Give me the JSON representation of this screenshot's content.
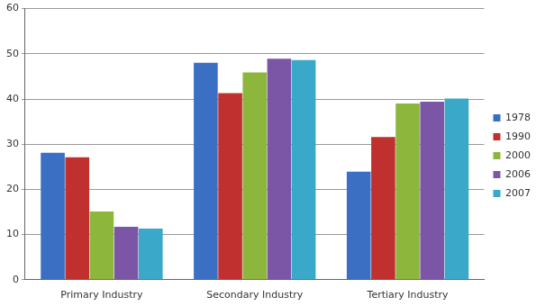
{
  "chart_data": {
    "type": "bar",
    "categories": [
      "Primary Industry",
      "Secondary Industry",
      "Tertiary Industry"
    ],
    "series": [
      {
        "name": "1978",
        "color": "#3a6fc4",
        "values": [
          28.1,
          48.0,
          23.9
        ]
      },
      {
        "name": "1990",
        "color": "#c0302e",
        "values": [
          27.1,
          41.3,
          31.6
        ]
      },
      {
        "name": "2000",
        "color": "#8db63c",
        "values": [
          15.1,
          45.9,
          39.0
        ]
      },
      {
        "name": "2006",
        "color": "#7b55a6",
        "values": [
          11.7,
          48.9,
          39.4
        ]
      },
      {
        "name": "2007",
        "color": "#3aa8c8",
        "values": [
          11.3,
          48.6,
          40.1
        ]
      }
    ],
    "ylim": [
      0,
      60
    ],
    "yticks": [
      0,
      10,
      20,
      30,
      40,
      50,
      60
    ],
    "grid": true,
    "legend": "right"
  }
}
